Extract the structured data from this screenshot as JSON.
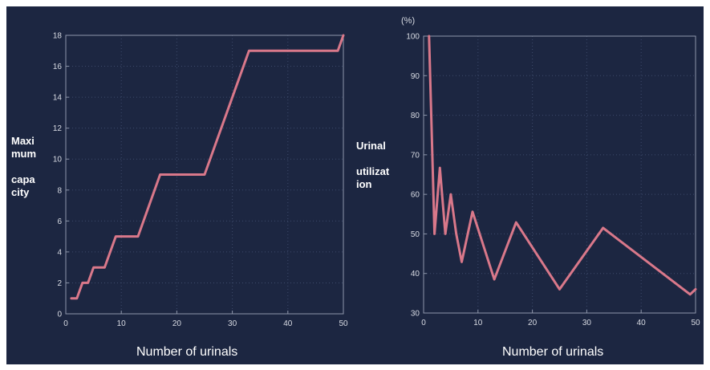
{
  "chart_data": [
    {
      "type": "line",
      "title": "",
      "ylabel": "Maxi\nmum\n\ncapa\ncity",
      "xlabel": "Number of urinals",
      "xlim": [
        0,
        50
      ],
      "ylim": [
        0,
        18
      ],
      "xticks": [
        0,
        10,
        20,
        30,
        40,
        50
      ],
      "yticks": [
        0,
        2,
        4,
        6,
        8,
        10,
        12,
        14,
        16,
        18
      ],
      "grid": true,
      "series_color": "#d9788a",
      "series": [
        {
          "x": [
            1,
            2,
            3,
            4,
            5,
            6,
            7,
            9,
            13,
            17,
            25,
            33,
            49,
            50
          ],
          "y": [
            1,
            1,
            2,
            2,
            3,
            3,
            3,
            5,
            5,
            9,
            9,
            17,
            17,
            18
          ]
        }
      ]
    },
    {
      "type": "line",
      "title": "",
      "unit_label": "(%)",
      "ylabel": "Urinal\n\nutilizat\nion",
      "xlabel": "Number of urinals",
      "xlim": [
        0,
        50
      ],
      "ylim": [
        30,
        100
      ],
      "xticks": [
        0,
        10,
        20,
        30,
        40,
        50
      ],
      "yticks": [
        30,
        40,
        50,
        60,
        70,
        80,
        90,
        100
      ],
      "grid": true,
      "series_color": "#d9788a",
      "series": [
        {
          "x": [
            1,
            2,
            3,
            4,
            5,
            6,
            7,
            9,
            13,
            17,
            25,
            33,
            49,
            50
          ],
          "y": [
            100,
            50,
            66.7,
            50,
            60,
            50,
            42.9,
            55.6,
            38.5,
            52.9,
            36,
            51.5,
            34.7,
            36
          ]
        }
      ]
    }
  ]
}
